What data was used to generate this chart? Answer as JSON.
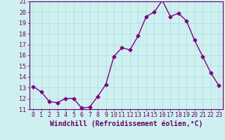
{
  "x": [
    0,
    1,
    2,
    3,
    4,
    5,
    6,
    7,
    8,
    9,
    10,
    11,
    12,
    13,
    14,
    15,
    16,
    17,
    18,
    19,
    20,
    21,
    22,
    23
  ],
  "y": [
    13.1,
    12.6,
    11.7,
    11.6,
    12.0,
    12.0,
    11.1,
    11.2,
    12.2,
    13.3,
    15.9,
    16.7,
    16.5,
    17.8,
    19.6,
    20.0,
    21.1,
    19.6,
    19.9,
    19.2,
    17.4,
    15.9,
    14.4,
    13.2
  ],
  "line_color": "#800080",
  "marker": "D",
  "marker_size": 2.5,
  "line_width": 1.0,
  "xlabel": "Windchill (Refroidissement éolien,°C)",
  "ylabel": "",
  "ylim": [
    11,
    21
  ],
  "xlim_min": -0.5,
  "xlim_max": 23.5,
  "yticks": [
    11,
    12,
    13,
    14,
    15,
    16,
    17,
    18,
    19,
    20,
    21
  ],
  "xticks": [
    0,
    1,
    2,
    3,
    4,
    5,
    6,
    7,
    8,
    9,
    10,
    11,
    12,
    13,
    14,
    15,
    16,
    17,
    18,
    19,
    20,
    21,
    22,
    23
  ],
  "background_color": "#cff0f0",
  "grid_color": "#aadddd",
  "tick_label_fontsize": 6.0,
  "xlabel_fontsize": 7.0,
  "text_color": "#660066"
}
